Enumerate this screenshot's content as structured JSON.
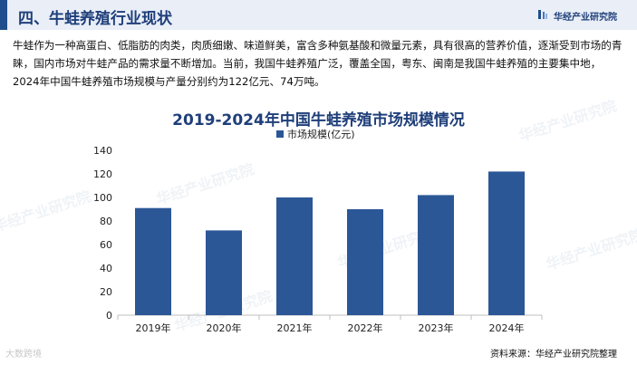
{
  "header": {
    "title": "四、牛蛙养殖行业现状",
    "brand": "华经产业研究院"
  },
  "paragraph": "牛蛙作为一种高蛋白、低脂肪的肉类，肉质细嫩、味道鲜美，富含多种氨基酸和微量元素，具有很高的营养价值，逐渐受到市场的青睐，国内市场对牛蛙产品的需求量不断增加。当前，我国牛蛙养殖广泛，覆盖全国，粤东、闽南是我国牛蛙养殖的主要集中地，2024年中国牛蛙养殖市场规模与产量分别约为122亿元、74万吨。",
  "chart_data": {
    "type": "bar",
    "title": "2019-2024年中国牛蛙养殖市场规模情况",
    "categories": [
      "2019年",
      "2020年",
      "2021年",
      "2022年",
      "2023年",
      "2024年"
    ],
    "series": [
      {
        "name": "市场规模(亿元)",
        "values": [
          91,
          72,
          100,
          90,
          102,
          122
        ]
      }
    ],
    "ylim": [
      0,
      140
    ],
    "yticks": [
      0,
      20,
      40,
      60,
      80,
      100,
      120,
      140
    ],
    "grid": false,
    "legend": "top-center",
    "bar_color": "#2b5797"
  },
  "source": "资料来源：华经产业研究院整理",
  "corner_mark": "大数跨境",
  "watermark": "华经产业研究院"
}
